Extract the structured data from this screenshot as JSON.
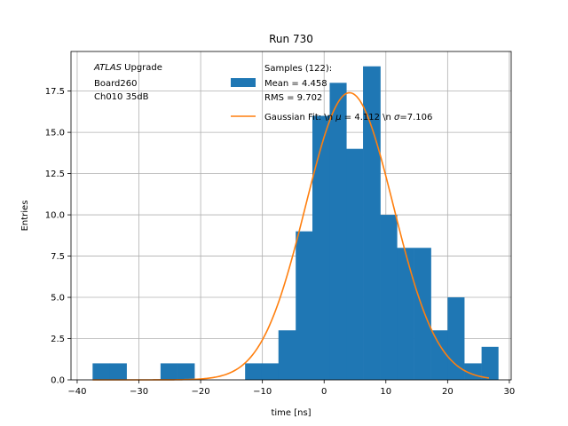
{
  "chart_data": {
    "type": "bar",
    "title": "Run 730",
    "xlabel": "time [ns]",
    "ylabel": "Entries",
    "xlim": [
      -41,
      30.3
    ],
    "ylim": [
      0,
      19.9
    ],
    "xticks": [
      -40,
      -30,
      -20,
      -10,
      0,
      10,
      20,
      30
    ],
    "xtick_labels": [
      "−40",
      "−30",
      "−20",
      "−10",
      "0",
      "10",
      "20",
      "30"
    ],
    "yticks": [
      0,
      2.5,
      5,
      7.5,
      10,
      12.5,
      15,
      17.5
    ],
    "ytick_labels": [
      "0.0",
      "2.5",
      "5.0",
      "7.5",
      "10.0",
      "12.5",
      "15.0",
      "17.5"
    ],
    "grid": true,
    "annotation": {
      "italic": "ATLAS",
      "line1_rest": " Upgrade",
      "line2": " Board260",
      "line3": " Ch010 35dB"
    },
    "histogram": {
      "name": "Samples (122):",
      "name_line2": " Mean = 4.458",
      "name_line3": " RMS = 9.702",
      "color": "#1f77b4",
      "bin_edges": [
        -37.5,
        -34.7,
        -32.0,
        -29.2,
        -26.5,
        -23.8,
        -21.0,
        -18.3,
        -15.6,
        -12.8,
        -10.1,
        -7.4,
        -4.6,
        -1.9,
        0.9,
        3.6,
        6.3,
        9.1,
        11.8,
        14.5,
        17.3,
        20.0,
        22.7,
        25.5,
        28.2
      ],
      "counts": [
        1,
        1,
        0,
        0,
        1,
        1,
        0,
        0,
        0,
        1,
        1,
        3,
        9,
        16,
        18,
        14,
        19,
        10,
        8,
        8,
        3,
        5,
        1,
        2
      ]
    },
    "fit": {
      "name_prefix": "Gaussian Fit: \\n ",
      "mu_symbol": "μ",
      "mu_text": " = 4.112 \\n ",
      "sigma_symbol": "σ",
      "sigma_text": "=7.106",
      "color": "#ff7f0e",
      "mu": 4.112,
      "sigma": 7.106,
      "amplitude": 17.4,
      "x_range": [
        -37.5,
        26.7
      ]
    },
    "legend_position": "upper center"
  }
}
